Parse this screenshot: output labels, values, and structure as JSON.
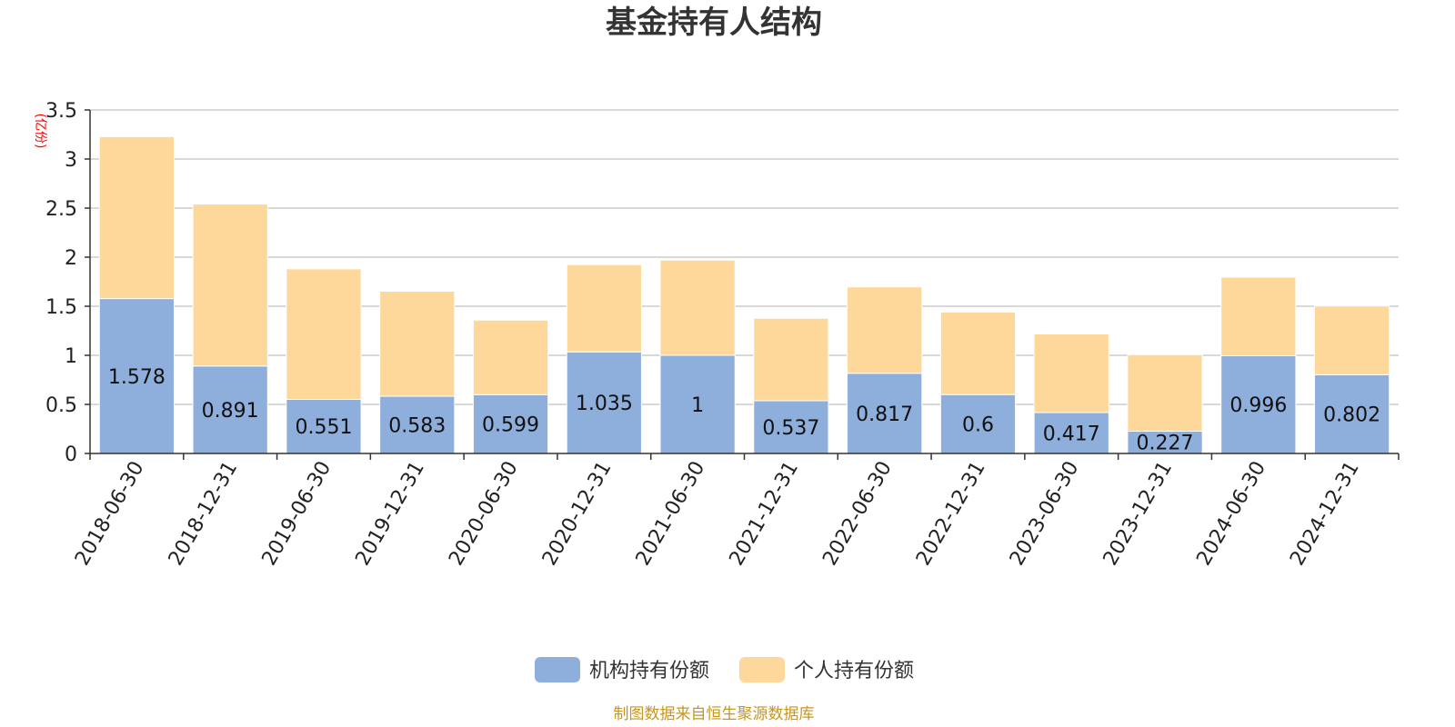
{
  "chart_data": {
    "type": "bar",
    "stacked": true,
    "title": "基金持有人结构",
    "ylabel": "(亿份)",
    "ylim": [
      0,
      3.5
    ],
    "yticks": [
      "0",
      "0.5",
      "1",
      "1.5",
      "2",
      "2.5",
      "3",
      "3.5"
    ],
    "grid": true,
    "legend_position": "bottom",
    "categories": [
      "2018-06-30",
      "2018-12-31",
      "2019-06-30",
      "2019-12-31",
      "2020-06-30",
      "2020-12-31",
      "2021-06-30",
      "2021-12-31",
      "2022-06-30",
      "2022-12-31",
      "2023-06-30",
      "2023-12-31",
      "2024-06-30",
      "2024-12-31"
    ],
    "series": [
      {
        "name": "机构持有份额",
        "color": "#8eaedc",
        "values": [
          1.578,
          0.891,
          0.551,
          0.583,
          0.599,
          1.035,
          1,
          0.537,
          0.817,
          0.6,
          0.417,
          0.227,
          0.996,
          0.802
        ],
        "labels": [
          "1.578",
          "0.891",
          "0.551",
          "0.583",
          "0.599",
          "1.035",
          "1",
          "0.537",
          "0.817",
          "0.6",
          "0.417",
          "0.227",
          "0.996",
          "0.802"
        ]
      },
      {
        "name": "个人持有份额",
        "color": "#fdd89a",
        "values": [
          1.65,
          1.65,
          1.33,
          1.07,
          0.76,
          0.89,
          0.97,
          0.84,
          0.88,
          0.84,
          0.8,
          0.78,
          0.8,
          0.7
        ]
      }
    ],
    "source": "制图数据来自恒生聚源数据库"
  }
}
